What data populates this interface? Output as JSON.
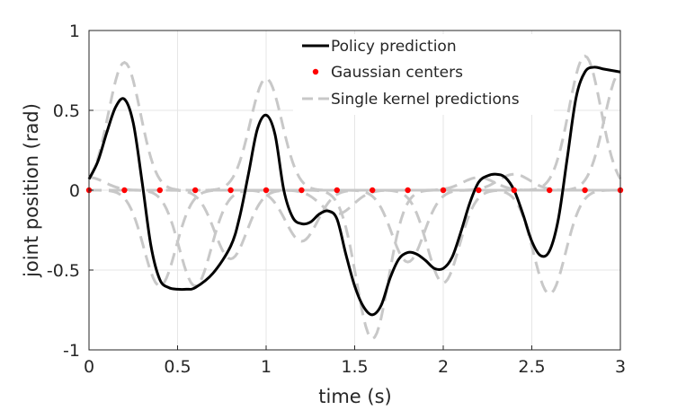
{
  "chart_data": {
    "type": "line",
    "title": "",
    "xlabel": "time (s)",
    "ylabel": "joint position (rad)",
    "xlim": [
      0,
      3
    ],
    "ylim": [
      -1,
      1
    ],
    "xticks": [
      "0",
      "0.5",
      "1",
      "1.5",
      "2",
      "2.5",
      "3"
    ],
    "yticks": [
      "1",
      "0.5",
      "0",
      "-0.5",
      "-1"
    ],
    "grid": true,
    "legend": {
      "placement": "top-center",
      "entries": [
        {
          "name": "Policy prediction",
          "style": "solid",
          "color": "#000000"
        },
        {
          "name": "Gaussian centers",
          "style": "markers",
          "color": "#ff0000"
        },
        {
          "name": "Single kernel predictions",
          "style": "dashed",
          "color": "#c8c8c8"
        }
      ]
    },
    "series": [
      {
        "name": "Policy prediction",
        "color": "#000000",
        "points": [
          [
            0,
            0.07
          ],
          [
            0.05,
            0.18
          ],
          [
            0.1,
            0.36
          ],
          [
            0.15,
            0.52
          ],
          [
            0.2,
            0.57
          ],
          [
            0.25,
            0.42
          ],
          [
            0.3,
            0.05
          ],
          [
            0.35,
            -0.35
          ],
          [
            0.4,
            -0.56
          ],
          [
            0.45,
            -0.61
          ],
          [
            0.5,
            -0.62
          ],
          [
            0.55,
            -0.62
          ],
          [
            0.6,
            -0.61
          ],
          [
            0.7,
            -0.52
          ],
          [
            0.8,
            -0.35
          ],
          [
            0.85,
            -0.17
          ],
          [
            0.9,
            0.1
          ],
          [
            0.95,
            0.38
          ],
          [
            1.0,
            0.47
          ],
          [
            1.05,
            0.35
          ],
          [
            1.1,
            0.0
          ],
          [
            1.15,
            -0.17
          ],
          [
            1.2,
            -0.21
          ],
          [
            1.25,
            -0.2
          ],
          [
            1.3,
            -0.15
          ],
          [
            1.35,
            -0.13
          ],
          [
            1.4,
            -0.18
          ],
          [
            1.45,
            -0.4
          ],
          [
            1.5,
            -0.6
          ],
          [
            1.55,
            -0.73
          ],
          [
            1.6,
            -0.78
          ],
          [
            1.65,
            -0.72
          ],
          [
            1.7,
            -0.55
          ],
          [
            1.75,
            -0.43
          ],
          [
            1.8,
            -0.39
          ],
          [
            1.85,
            -0.4
          ],
          [
            1.9,
            -0.44
          ],
          [
            1.95,
            -0.49
          ],
          [
            2.0,
            -0.49
          ],
          [
            2.05,
            -0.42
          ],
          [
            2.1,
            -0.26
          ],
          [
            2.15,
            -0.08
          ],
          [
            2.2,
            0.05
          ],
          [
            2.25,
            0.09
          ],
          [
            2.3,
            0.1
          ],
          [
            2.35,
            0.08
          ],
          [
            2.4,
            0.0
          ],
          [
            2.45,
            -0.15
          ],
          [
            2.5,
            -0.32
          ],
          [
            2.55,
            -0.41
          ],
          [
            2.6,
            -0.38
          ],
          [
            2.65,
            -0.18
          ],
          [
            2.7,
            0.2
          ],
          [
            2.75,
            0.58
          ],
          [
            2.8,
            0.74
          ],
          [
            2.85,
            0.77
          ],
          [
            2.9,
            0.76
          ],
          [
            2.95,
            0.75
          ],
          [
            3.0,
            0.74
          ]
        ]
      },
      {
        "name": "Gaussian centers",
        "color": "#ff0000",
        "x": [
          0,
          0.2,
          0.4,
          0.6,
          0.8,
          1.0,
          1.2,
          1.4,
          1.6,
          1.8,
          2.0,
          2.2,
          2.4,
          2.6,
          2.8,
          3.0
        ],
        "y": [
          0,
          0,
          0,
          0,
          0,
          0,
          0,
          0,
          0,
          0,
          0,
          0,
          0,
          0,
          0,
          0
        ]
      },
      {
        "name": "Single kernel predictions",
        "color": "#c8c8c8",
        "kernels": [
          {
            "center": 0.0,
            "amplitude": 0.08
          },
          {
            "center": 0.2,
            "amplitude": 0.8
          },
          {
            "center": 0.4,
            "amplitude": -0.6
          },
          {
            "center": 0.6,
            "amplitude": -0.6
          },
          {
            "center": 0.8,
            "amplitude": -0.43
          },
          {
            "center": 1.0,
            "amplitude": 0.7
          },
          {
            "center": 1.2,
            "amplitude": -0.32
          },
          {
            "center": 1.4,
            "amplitude": -0.15
          },
          {
            "center": 1.6,
            "amplitude": -0.93
          },
          {
            "center": 1.8,
            "amplitude": -0.45
          },
          {
            "center": 2.0,
            "amplitude": -0.58
          },
          {
            "center": 2.2,
            "amplitude": 0.08
          },
          {
            "center": 2.4,
            "amplitude": 0.1
          },
          {
            "center": 2.6,
            "amplitude": -0.65
          },
          {
            "center": 2.8,
            "amplitude": 0.84
          },
          {
            "center": 3.0,
            "amplitude": 0.74
          }
        ]
      }
    ]
  }
}
